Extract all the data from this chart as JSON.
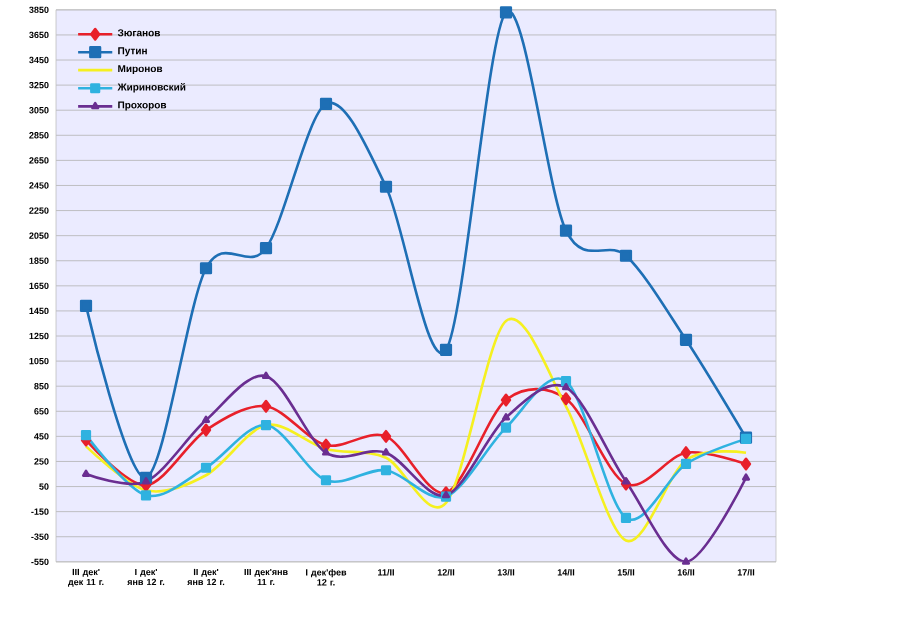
{
  "chart_data": {
    "type": "line",
    "categories": [
      "III дек' дек 11 г.",
      "I дек' янв 12 г.",
      "II дек' янв 12 г.",
      "III дек'янв 11 г.",
      "I дек'фев 12 г.",
      "11/II",
      "12/II",
      "13/II",
      "14/II",
      "15/II",
      "16/II",
      "17/II"
    ],
    "series": [
      {
        "name": "Зюганов",
        "color": "#e8202a",
        "marker": "diamond",
        "values": [
          420,
          60,
          500,
          690,
          380,
          450,
          0,
          740,
          750,
          70,
          320,
          230
        ]
      },
      {
        "name": "Путин",
        "color": "#1e6fb5",
        "marker": "square",
        "values": [
          1490,
          120,
          1790,
          1950,
          3100,
          2440,
          1140,
          3830,
          2090,
          1890,
          1220,
          440
        ]
      },
      {
        "name": "Миронов",
        "color": "#f5f020",
        "marker": "none",
        "values": [
          370,
          20,
          140,
          540,
          350,
          280,
          -80,
          1370,
          690,
          -380,
          260,
          320
        ]
      },
      {
        "name": "Жириновский",
        "color": "#2fb2e0",
        "marker": "square",
        "values": [
          460,
          -20,
          200,
          540,
          100,
          180,
          -30,
          520,
          890,
          -200,
          230,
          430
        ]
      },
      {
        "name": "Прохоров",
        "color": "#6a2e91",
        "marker": "triangle",
        "values": [
          150,
          90,
          580,
          930,
          320,
          320,
          -20,
          600,
          840,
          90,
          -550,
          120
        ]
      }
    ],
    "ylim": [
      -550,
      3850
    ],
    "yticks": [
      -550,
      -350,
      -150,
      50,
      250,
      450,
      650,
      850,
      1050,
      1250,
      1450,
      1650,
      1850,
      2050,
      2250,
      2450,
      2650,
      2850,
      3050,
      3250,
      3450,
      3650,
      3850
    ],
    "grid": "y",
    "legend": "top left",
    "line_style": "solid"
  }
}
